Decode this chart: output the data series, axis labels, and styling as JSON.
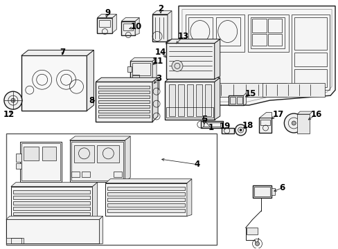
{
  "bg_color": "#ffffff",
  "line_color": "#1a1a1a",
  "label_color": "#000000",
  "label_fontsize": 8.5,
  "title_fontsize": 7,
  "figsize": [
    4.89,
    3.6
  ],
  "dpi": 100
}
